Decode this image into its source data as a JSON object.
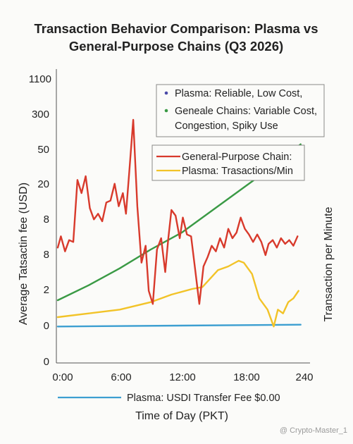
{
  "chart_data": {
    "type": "line",
    "title_line1": "Transaction Behavior Comparison: Plasma vs",
    "title_line2": "General-Purpose Chains (Q3 2026)",
    "xlabel": "Time of Day (PKT)",
    "ylabel_left": "Average Tatsactin fee (USD)",
    "ylabel_right": "Transaction per Minute",
    "x_ticks": [
      "0:00",
      "6:00",
      "12:00",
      "18:00",
      "240"
    ],
    "y_ticks": [
      "0",
      "0",
      "2",
      "8",
      "8",
      "20",
      "50",
      "300",
      "1100"
    ],
    "legend_top": [
      {
        "label": "Plasma: Reliable, Low Cost,",
        "color": "#4a4aa8"
      },
      {
        "label": "Geneale Chains: Variable Cost,",
        "color": "#3a9a45"
      },
      {
        "label": "Congestion, Spiky Use",
        "color": "none"
      }
    ],
    "legend_mid": [
      {
        "label": "General-Purpose Chain:",
        "color": "#d83a2c"
      },
      {
        "label": "Plasma: Trasactions/Min",
        "color": "#f2c328"
      }
    ],
    "legend_bottom": {
      "label": "Plasma: USDI Transfer Fee $0.00",
      "color": "#3d9fd1"
    },
    "series": [
      {
        "name": "General-Purpose Chain:",
        "color": "#d83a2c",
        "points": [
          [
            0,
            7.55
          ],
          [
            0.3,
            7.85
          ],
          [
            0.7,
            7.45
          ],
          [
            1.1,
            7.75
          ],
          [
            1.5,
            7.7
          ],
          [
            1.9,
            9.35
          ],
          [
            2.3,
            9
          ],
          [
            2.7,
            9.45
          ],
          [
            3.1,
            8.6
          ],
          [
            3.5,
            8.3
          ],
          [
            3.9,
            8.45
          ],
          [
            4.3,
            8.25
          ],
          [
            4.7,
            8.75
          ],
          [
            5.1,
            8.8
          ],
          [
            5.5,
            9.25
          ],
          [
            5.9,
            8.65
          ],
          [
            6.3,
            9
          ],
          [
            6.6,
            8.45
          ],
          [
            6.9,
            9.5
          ],
          [
            7.3,
            10.95
          ],
          [
            7.7,
            8.65
          ],
          [
            8.1,
            7.15
          ],
          [
            8.5,
            7.6
          ],
          [
            8.8,
            6.4
          ],
          [
            9.2,
            6.05
          ],
          [
            9.6,
            7.5
          ],
          [
            10.0,
            7.8
          ],
          [
            10.4,
            6.9
          ],
          [
            10.7,
            7.8
          ],
          [
            11.0,
            8.55
          ],
          [
            11.4,
            8.4
          ],
          [
            11.8,
            7.8
          ],
          [
            12.1,
            8.35
          ],
          [
            12.5,
            7.9
          ],
          [
            12.9,
            7.85
          ],
          [
            13.3,
            6.95
          ],
          [
            13.7,
            6.05
          ],
          [
            14.1,
            7.05
          ],
          [
            14.5,
            7.3
          ],
          [
            14.9,
            7.6
          ],
          [
            15.3,
            7.45
          ],
          [
            15.7,
            7.8
          ],
          [
            16.1,
            7.55
          ],
          [
            16.5,
            8.05
          ],
          [
            16.9,
            7.8
          ],
          [
            17.3,
            7.95
          ],
          [
            17.7,
            8.35
          ],
          [
            18.1,
            8.05
          ],
          [
            18.5,
            7.9
          ],
          [
            18.9,
            7.7
          ],
          [
            19.3,
            7.9
          ],
          [
            19.7,
            7.7
          ],
          [
            20.1,
            7.35
          ],
          [
            20.4,
            7.65
          ],
          [
            20.8,
            7.75
          ],
          [
            21.2,
            7.55
          ],
          [
            21.6,
            7.8
          ],
          [
            22.0,
            7.65
          ],
          [
            22.4,
            7.75
          ],
          [
            22.8,
            7.6
          ],
          [
            23.2,
            7.85
          ]
        ]
      },
      {
        "name": "Plasma: Trasactions/Min",
        "color": "#f2c328",
        "points": [
          [
            0,
            5.7
          ],
          [
            3,
            5.8
          ],
          [
            6,
            5.9
          ],
          [
            9,
            6.1
          ],
          [
            11,
            6.3
          ],
          [
            13,
            6.45
          ],
          [
            14,
            6.5
          ],
          [
            15.5,
            6.95
          ],
          [
            16.5,
            7.05
          ],
          [
            17.5,
            7.2
          ],
          [
            18,
            7.15
          ],
          [
            18.8,
            6.85
          ],
          [
            19.5,
            6.2
          ],
          [
            20.3,
            5.9
          ],
          [
            20.9,
            5.45
          ],
          [
            21.3,
            5.9
          ],
          [
            21.8,
            5.8
          ],
          [
            22.3,
            6.1
          ],
          [
            22.8,
            6.2
          ],
          [
            23.3,
            6.4
          ]
        ]
      },
      {
        "name": "General-Purpose Chain",
        "color": "#3a9a45",
        "points": [
          [
            0,
            6.15
          ],
          [
            3,
            6.55
          ],
          [
            6,
            7
          ],
          [
            9,
            7.5
          ],
          [
            12,
            7.95
          ],
          [
            15,
            8.55
          ],
          [
            18,
            9.15
          ],
          [
            21,
            9.75
          ],
          [
            23.5,
            10.3
          ]
        ]
      },
      {
        "name": "Plasma: USDI Transfer Fee $0.00",
        "color": "#3d9fd1",
        "points": [
          [
            0,
            5.45
          ],
          [
            23.5,
            5.5
          ]
        ]
      }
    ],
    "xlim": [
      0,
      24
    ],
    "ylim": [
      4.5,
      12
    ]
  },
  "watermark": "@ Crypto-Master_1"
}
